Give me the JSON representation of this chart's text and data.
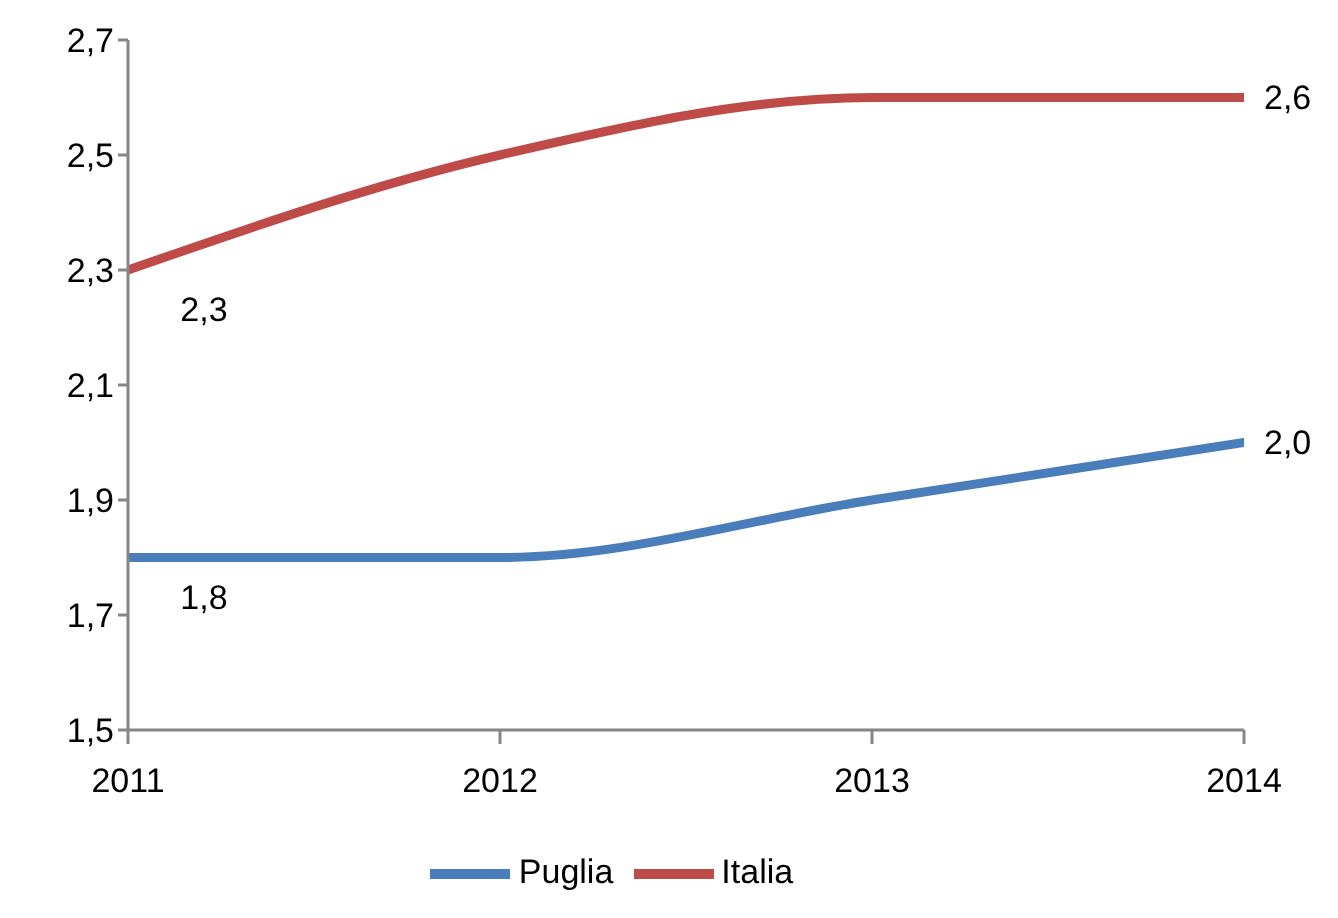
{
  "chart_data": {
    "type": "line",
    "categories": [
      "2011",
      "2012",
      "2013",
      "2014"
    ],
    "series": [
      {
        "name": "Puglia",
        "color": "#4a7ebb",
        "values": [
          1.8,
          1.8,
          1.9,
          2.0
        ],
        "value_labels": [
          "1,8",
          null,
          null,
          "2,0"
        ]
      },
      {
        "name": "Italia",
        "color": "#be4b48",
        "values": [
          2.3,
          2.5,
          2.6,
          2.6
        ],
        "value_labels": [
          "2,3",
          null,
          null,
          "2,6"
        ]
      }
    ],
    "ylim": [
      1.5,
      2.7
    ],
    "yticks": [
      {
        "value": 1.5,
        "label": "1,5"
      },
      {
        "value": 1.7,
        "label": "1,7"
      },
      {
        "value": 1.9,
        "label": "1,9"
      },
      {
        "value": 2.1,
        "label": "2,1"
      },
      {
        "value": 2.3,
        "label": "2,3"
      },
      {
        "value": 2.5,
        "label": "2,5"
      },
      {
        "value": 2.7,
        "label": "2,7"
      }
    ],
    "grid": false,
    "legend": "bottom",
    "marker": "none",
    "line_style": "solid"
  }
}
